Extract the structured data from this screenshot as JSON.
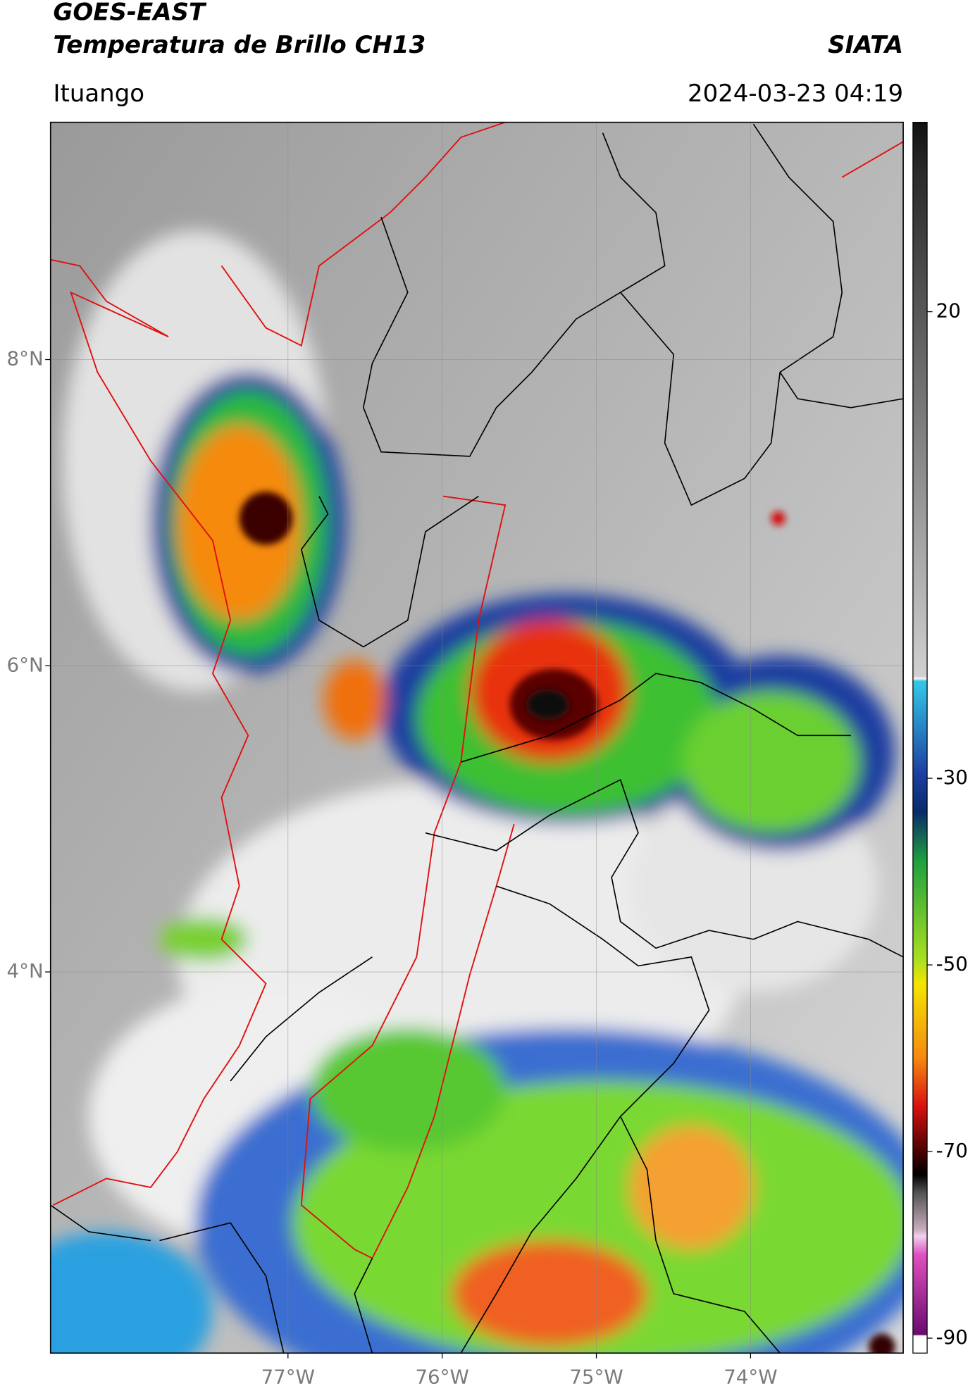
{
  "header": {
    "title": "GOES-EAST",
    "subtitle": "Temperatura de Brillo CH13",
    "source": "SIATA",
    "location": "Ituango",
    "timestamp": "2024-03-23 04:19"
  },
  "map": {
    "xlim": [
      -78.54,
      -73.01
    ],
    "ylim": [
      1.51,
      9.55
    ],
    "xticks": [
      {
        "value": -77,
        "label": "77°W"
      },
      {
        "value": -76,
        "label": "76°W"
      },
      {
        "value": -75,
        "label": "75°W"
      },
      {
        "value": -74,
        "label": "74°W"
      }
    ],
    "yticks": [
      {
        "value": 8,
        "label": "8°N"
      },
      {
        "value": 6,
        "label": "6°N"
      },
      {
        "value": 4,
        "label": "4°N"
      }
    ],
    "grid": true
  },
  "colorbar": {
    "clim": [
      -91.6,
      40.3
    ],
    "ticks": [
      20,
      -30,
      -50,
      -70,
      -90
    ]
  }
}
